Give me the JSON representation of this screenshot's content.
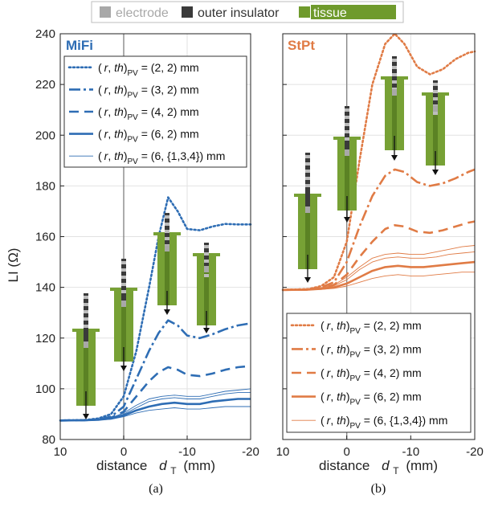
{
  "top_legend": {
    "items": [
      {
        "label": "electrode",
        "color": "#a8a8a8",
        "text_color": "#a8a8a8"
      },
      {
        "label": "outer insulator",
        "color": "#3a3a3a",
        "text_color": "#333333"
      },
      {
        "label": "tissue",
        "color": "#6f9a2c",
        "text_color": "#ffffff"
      }
    ]
  },
  "y_axis_label": "LI (Ω)",
  "x_axis_label_prefix": "distance",
  "x_axis_label_var": "d",
  "x_axis_label_sub": "T",
  "x_axis_label_unit": "(mm)",
  "chart_data": [
    {
      "type": "line",
      "title": "MiFi",
      "caption": "(a)",
      "color": "#2e6db4",
      "xlim": [
        10,
        -20
      ],
      "ylim": [
        80,
        240
      ],
      "x_ticks": [
        10,
        0,
        -10,
        -20
      ],
      "x_tick_labels": [
        "10",
        "0",
        "-10",
        "-20"
      ],
      "y_ticks": [
        80,
        100,
        120,
        140,
        160,
        180,
        200,
        220,
        240
      ],
      "legend_position": "top",
      "legend": [
        {
          "label": "(r, th)PV = (2, 2) mm",
          "r": "r",
          "th": "th",
          "value": "= (2, 2) mm",
          "style": "dotted"
        },
        {
          "label": "(r, th)PV = (3, 2) mm",
          "r": "r",
          "th": "th",
          "value": "= (3, 2) mm",
          "style": "dashdot"
        },
        {
          "label": "(r, th)PV = (4, 2) mm",
          "r": "r",
          "th": "th",
          "value": "= (4, 2) mm",
          "style": "dashed"
        },
        {
          "label": "(r, th)PV = (6, 2) mm",
          "r": "r",
          "th": "th",
          "value": "= (6, 2) mm",
          "style": "solid"
        },
        {
          "label": "(r, th)PV = (6, {1,3,4}) mm",
          "r": "r",
          "th": "th",
          "value": "= (6, {1,3,4}) mm",
          "style": "thin"
        }
      ],
      "series": [
        {
          "style": "dotted",
          "x": [
            10,
            6,
            4,
            2,
            0,
            -2,
            -4,
            -5.5,
            -7,
            -8.5,
            -10,
            -12,
            -14,
            -16,
            -18,
            -20
          ],
          "y": [
            87.5,
            87.7,
            88.3,
            90,
            97,
            115,
            140,
            160,
            175.5,
            170,
            163,
            162.5,
            164,
            165,
            164.8,
            164.8
          ]
        },
        {
          "style": "dashdot",
          "x": [
            10,
            6,
            4,
            2,
            0,
            -2,
            -4,
            -5.5,
            -7,
            -8.5,
            -10,
            -12,
            -14,
            -16,
            -18,
            -20
          ],
          "y": [
            87.5,
            87.6,
            88,
            89,
            93,
            104,
            115,
            122,
            127,
            125,
            121,
            120,
            121.5,
            123.5,
            125,
            125.8
          ]
        },
        {
          "style": "dashed",
          "x": [
            10,
            6,
            4,
            2,
            0,
            -2,
            -4,
            -5.5,
            -7,
            -8.5,
            -10,
            -12,
            -14,
            -16,
            -18,
            -20
          ],
          "y": [
            87.5,
            87.6,
            87.9,
            88.6,
            91,
            97,
            103,
            106.5,
            108.5,
            107.5,
            105.5,
            105,
            106,
            107.5,
            108.5,
            109
          ]
        },
        {
          "style": "solid",
          "x": [
            10,
            6,
            4,
            2,
            0,
            -2,
            -4,
            -6,
            -8,
            -10,
            -12,
            -14,
            -16,
            -18,
            -20
          ],
          "y": [
            87.5,
            87.6,
            87.8,
            88.3,
            89.5,
            91.5,
            93,
            94,
            94.5,
            94,
            94,
            95,
            95.5,
            96,
            96
          ]
        },
        {
          "style": "thin",
          "x": [
            10,
            6,
            4,
            2,
            0,
            -2,
            -4,
            -6,
            -8,
            -10,
            -12,
            -14,
            -16,
            -18,
            -20
          ],
          "y": [
            87.5,
            87.6,
            87.9,
            88.5,
            90.5,
            93.5,
            96,
            97,
            97.5,
            97,
            97,
            98,
            99,
            99.5,
            100
          ]
        },
        {
          "style": "thin",
          "x": [
            10,
            6,
            4,
            2,
            0,
            -2,
            -4,
            -6,
            -8,
            -10,
            -12,
            -14,
            -16,
            -18,
            -20
          ],
          "y": [
            87.5,
            87.6,
            87.8,
            88.4,
            90,
            92.5,
            95,
            96,
            96.5,
            96,
            96,
            97,
            98,
            98.5,
            98.5
          ]
        },
        {
          "style": "thin",
          "x": [
            10,
            6,
            4,
            2,
            0,
            -2,
            -4,
            -6,
            -8,
            -10,
            -12,
            -14,
            -16,
            -18,
            -20
          ],
          "y": [
            87.5,
            87.5,
            87.7,
            88,
            89,
            90.5,
            91.5,
            92,
            92.5,
            92,
            92,
            92.5,
            93,
            93,
            93
          ]
        }
      ]
    },
    {
      "type": "line",
      "title": "StPt",
      "caption": "(b)",
      "color": "#e07b45",
      "xlim": [
        10,
        -20
      ],
      "ylim": [
        80,
        240
      ],
      "x_ticks": [
        10,
        0,
        -10,
        -20
      ],
      "x_tick_labels": [
        "10",
        "0",
        "-10",
        "-20"
      ],
      "y_ticks": [
        80,
        100,
        120,
        140,
        160,
        180,
        200,
        220,
        240
      ],
      "legend_position": "bottom",
      "legend": [
        {
          "label": "(r, th)PV = (2, 2) mm",
          "r": "r",
          "th": "th",
          "value": "= (2, 2) mm",
          "style": "dotted"
        },
        {
          "label": "(r, th)PV = (3, 2) mm",
          "r": "r",
          "th": "th",
          "value": "= (3, 2) mm",
          "style": "dashdot"
        },
        {
          "label": "(r, th)PV = (4, 2) mm",
          "r": "r",
          "th": "th",
          "value": "= (4, 2) mm",
          "style": "dashed"
        },
        {
          "label": "(r, th)PV = (6, 2) mm",
          "r": "r",
          "th": "th",
          "value": "= (6, 2) mm",
          "style": "solid"
        },
        {
          "label": "(r, th)PV = (6, {1,3,4}) mm",
          "r": "r",
          "th": "th",
          "value": "= (6, {1,3,4}) mm",
          "style": "thin"
        }
      ],
      "series": [
        {
          "style": "dotted",
          "x": [
            10,
            6,
            4,
            2,
            0,
            -2,
            -4,
            -6,
            -7.5,
            -9,
            -11,
            -13,
            -15,
            -17,
            -19,
            -20
          ],
          "y": [
            139,
            139.3,
            140.5,
            144,
            158,
            190,
            220,
            236,
            240,
            236,
            227,
            224,
            226,
            230,
            232.5,
            233
          ]
        },
        {
          "style": "dashdot",
          "x": [
            10,
            6,
            4,
            2,
            0,
            -2,
            -4,
            -6,
            -7.5,
            -9,
            -11,
            -13,
            -15,
            -17,
            -19,
            -20
          ],
          "y": [
            139,
            139.2,
            140,
            142,
            150,
            164,
            176,
            184,
            186.5,
            185.5,
            181.5,
            180,
            181,
            183,
            185.5,
            186.5
          ]
        },
        {
          "style": "dashed",
          "x": [
            10,
            6,
            4,
            2,
            0,
            -2,
            -4,
            -6,
            -7.5,
            -9,
            -11,
            -13,
            -15,
            -17,
            -19,
            -20
          ],
          "y": [
            139,
            139.1,
            139.6,
            141,
            145,
            152,
            158,
            163,
            164.5,
            164,
            162,
            161.5,
            162.5,
            164,
            165.5,
            166
          ]
        },
        {
          "style": "solid",
          "x": [
            10,
            6,
            4,
            2,
            0,
            -2,
            -4,
            -6,
            -8,
            -10,
            -12,
            -14,
            -16,
            -18,
            -20
          ],
          "y": [
            139,
            139.1,
            139.4,
            140,
            141.5,
            144,
            146.5,
            148,
            148.5,
            148,
            148,
            148.5,
            149,
            149.5,
            150
          ]
        },
        {
          "style": "thin",
          "x": [
            10,
            6,
            4,
            2,
            0,
            -2,
            -4,
            -6,
            -8,
            -10,
            -12,
            -14,
            -16,
            -18,
            -20
          ],
          "y": [
            139,
            139.2,
            139.8,
            141,
            144,
            148,
            151.5,
            153,
            153.5,
            153,
            153,
            154,
            155,
            156,
            156.5
          ]
        },
        {
          "style": "thin",
          "x": [
            10,
            6,
            4,
            2,
            0,
            -2,
            -4,
            -6,
            -8,
            -10,
            -12,
            -14,
            -16,
            -18,
            -20
          ],
          "y": [
            139,
            139.2,
            139.6,
            140.6,
            143,
            147,
            150,
            151.5,
            152,
            151.5,
            151.5,
            152,
            153,
            153.5,
            154
          ]
        },
        {
          "style": "thin",
          "x": [
            10,
            6,
            4,
            2,
            0,
            -2,
            -4,
            -6,
            -8,
            -10,
            -12,
            -14,
            -16,
            -18,
            -20
          ],
          "y": [
            139,
            139,
            139.2,
            139.6,
            140.5,
            142,
            143.5,
            144.5,
            145,
            144.5,
            144.5,
            145,
            145.5,
            146,
            146
          ]
        }
      ]
    }
  ]
}
